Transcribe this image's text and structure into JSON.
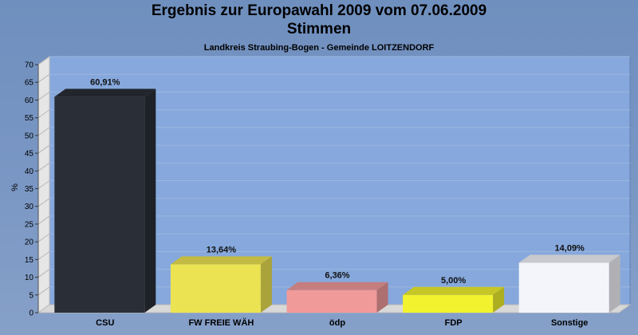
{
  "chart_data": {
    "type": "bar",
    "title": "Ergebnis zur Europawahl 2009 vom 07.06.2009",
    "title_line2": "Stimmen",
    "subtitle": "Landkreis Straubing-Bogen - Gemeinde LOITZENDORF",
    "ylabel": "%",
    "ylim": [
      0,
      70
    ],
    "yticks": [
      0,
      5,
      10,
      15,
      20,
      25,
      30,
      35,
      40,
      45,
      50,
      55,
      60,
      65,
      70
    ],
    "grid": true,
    "categories": [
      "CSU",
      "FW FREIE WÄH",
      "ödp",
      "FDP",
      "Sonstige"
    ],
    "values": [
      60.91,
      13.64,
      6.36,
      5.0,
      14.09
    ],
    "labels": [
      "60,91%",
      "13,64%",
      "6,36%",
      "5,00%",
      "14,09%"
    ],
    "colors": [
      "#2a2e36",
      "#ece352",
      "#f09a9a",
      "#f2f22e",
      "#f4f5fa"
    ]
  }
}
